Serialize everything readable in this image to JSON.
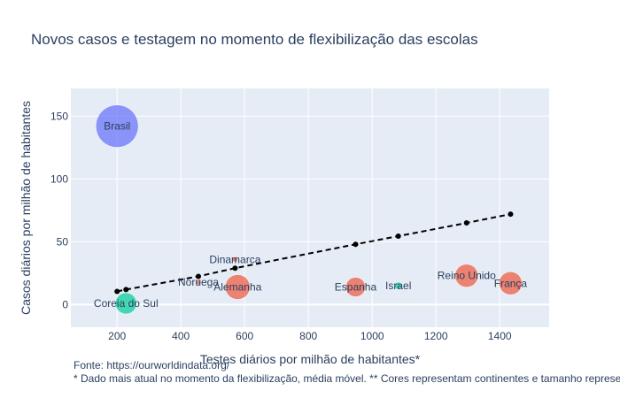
{
  "chart_data": {
    "type": "scatter",
    "title": "Novos casos e testagem no momento de flexibilização das escolas",
    "xlabel": "Testes diários por milhão de habitantes*",
    "ylabel": "Casos diários por milhão de habitantes",
    "xlim": [
      55,
      1555
    ],
    "ylim": [
      -18,
      172
    ],
    "xticks": [
      200,
      400,
      600,
      800,
      1000,
      1200,
      1400
    ],
    "yticks": [
      0,
      50,
      100,
      150
    ],
    "grid": true,
    "legend": "none",
    "colors": {
      "plot_bg": "#e5ecf6",
      "grid": "#ffffff",
      "americas": "#636efa",
      "europe": "#ef553b",
      "asia": "#00cc96",
      "trend": "#000000"
    },
    "bubbles": [
      {
        "label": "Brasil",
        "x": 200,
        "y": 142,
        "size": 24,
        "color": "#636efa"
      },
      {
        "label": "Coreia do Sul",
        "x": 228,
        "y": 1,
        "size": 12,
        "color": "#00cc96"
      },
      {
        "label": "Noruega",
        "x": 455,
        "y": 18,
        "size": 3,
        "color": "#ef553b"
      },
      {
        "label": "Dinamarca",
        "x": 570,
        "y": 36,
        "size": 3,
        "color": "#ef553b"
      },
      {
        "label": "Alemanha",
        "x": 578,
        "y": 14,
        "size": 14,
        "color": "#ef553b"
      },
      {
        "label": "Espanha",
        "x": 948,
        "y": 14,
        "size": 11,
        "color": "#ef553b"
      },
      {
        "label": "Israel",
        "x": 1082,
        "y": 15,
        "size": 4,
        "color": "#00cc96"
      },
      {
        "label": "Reino Unido",
        "x": 1296,
        "y": 23,
        "size": 13,
        "color": "#ef553b"
      },
      {
        "label": "França",
        "x": 1434,
        "y": 17,
        "size": 13,
        "color": "#ef553b"
      }
    ],
    "trend": {
      "x": [
        200,
        228,
        455,
        570,
        948,
        1082,
        1296,
        1434
      ],
      "y": [
        10.5,
        12,
        22.5,
        29,
        48,
        54.5,
        65,
        72
      ]
    }
  },
  "notes": {
    "source": "Fonte: https://ourworldindata.org/",
    "footnote": "* Dado mais atual no momento da flexibilização, média móvel. ** Cores representam continentes e tamanho representa população"
  }
}
